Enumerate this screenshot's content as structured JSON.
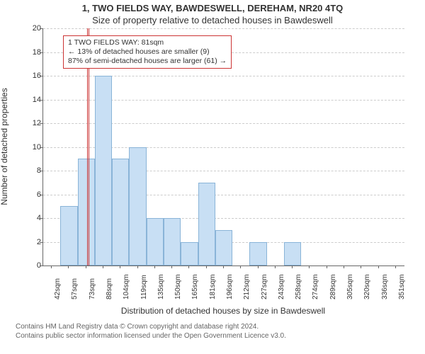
{
  "title": "1, TWO FIELDS WAY, BAWDESWELL, DEREHAM, NR20 4TQ",
  "subtitle": "Size of property relative to detached houses in Bawdeswell",
  "chart": {
    "type": "histogram",
    "y_axis": {
      "label": "Number of detached properties",
      "min": 0,
      "max": 20,
      "tick_step": 2,
      "label_fontsize": 12,
      "tick_fontsize": 11
    },
    "x_axis": {
      "label": "Distribution of detached houses by size in Bawdeswell",
      "categories": [
        "42sqm",
        "57sqm",
        "73sqm",
        "88sqm",
        "104sqm",
        "119sqm",
        "135sqm",
        "150sqm",
        "165sqm",
        "181sqm",
        "196sqm",
        "212sqm",
        "227sqm",
        "243sqm",
        "258sqm",
        "274sqm",
        "289sqm",
        "305sqm",
        "320sqm",
        "336sqm",
        "351sqm"
      ],
      "label_fontsize": 12,
      "tick_fontsize": 10
    },
    "bars": {
      "values": [
        0,
        5,
        9,
        16,
        9,
        10,
        4,
        4,
        2,
        7,
        3,
        0,
        2,
        0,
        2,
        0,
        0,
        0,
        0,
        0,
        0
      ],
      "fill_color": "#c8dff4",
      "border_color": "#8ab4d8",
      "width_ratio": 1.0
    },
    "reference_line": {
      "position_index": 2.6,
      "color": "#cc3333"
    },
    "annotation": {
      "lines": [
        "1 TWO FIELDS WAY: 81sqm",
        "← 13% of detached houses are smaller (9)",
        "87% of semi-detached houses are larger (61) →"
      ],
      "border_color": "#cc3333",
      "background": "#ffffff",
      "fontsize": 10.5
    },
    "grid_color": "#cccccc",
    "background_color": "#ffffff",
    "axis_color": "#666666"
  },
  "footer": {
    "line1": "Contains HM Land Registry data © Crown copyright and database right 2024.",
    "line2": "Contains public sector information licensed under the Open Government Licence v3.0.",
    "fontsize": 10,
    "color": "#666666"
  }
}
